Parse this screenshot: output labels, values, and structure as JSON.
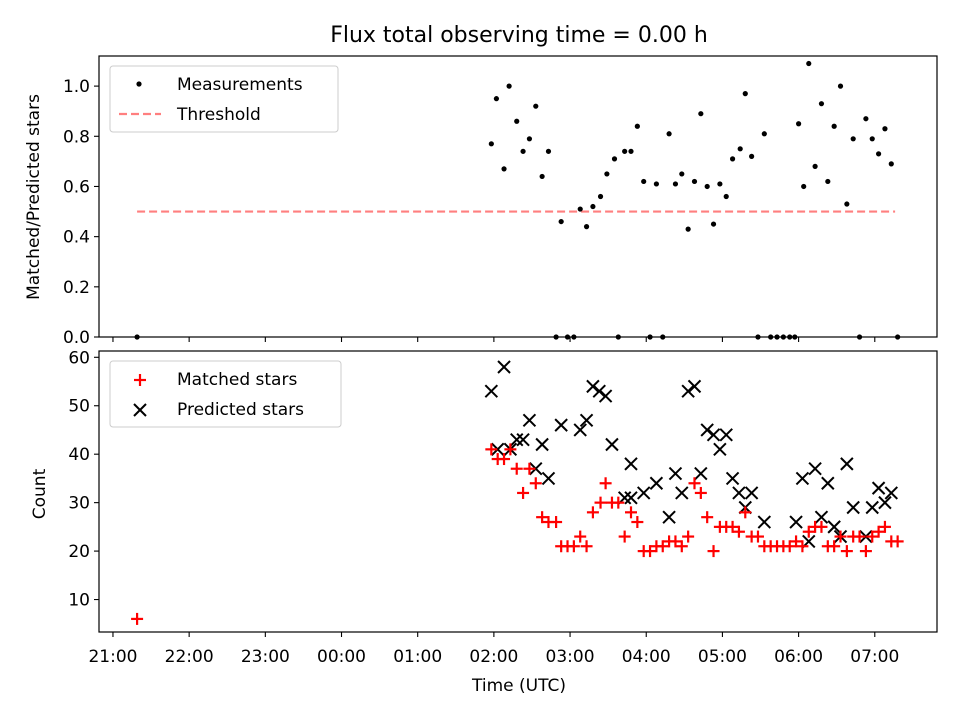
{
  "title": "Flux total observing time = 0.00 h",
  "chart_data": [
    {
      "type": "scatter",
      "title": "Flux total observing time = 0.00 h",
      "xlabel": "",
      "ylabel": "Matched/Predicted stars",
      "xlim": [
        "20:49",
        "07:49"
      ],
      "ylim": [
        0,
        1.12
      ],
      "yticks": [
        "0.0",
        "0.2",
        "0.4",
        "0.6",
        "0.8",
        "1.0"
      ],
      "legend_location": "upper left",
      "legend": [
        "Measurements",
        "Threshold"
      ],
      "threshold": {
        "name": "Threshold",
        "value": 0.5,
        "x_start": "21:19",
        "x_end": "07:16",
        "color": "#ff7f7f"
      },
      "series": [
        {
          "name": "Measurements",
          "color": "#000000",
          "points": [
            [
              "21:19",
              0.0
            ],
            [
              "01:58",
              0.77
            ],
            [
              "02:02",
              0.95
            ],
            [
              "02:08",
              0.67
            ],
            [
              "02:12",
              1.0
            ],
            [
              "02:18",
              0.86
            ],
            [
              "02:23",
              0.74
            ],
            [
              "02:28",
              0.79
            ],
            [
              "02:33",
              0.92
            ],
            [
              "02:38",
              0.64
            ],
            [
              "02:43",
              0.74
            ],
            [
              "02:49",
              0.0
            ],
            [
              "02:53",
              0.46
            ],
            [
              "02:58",
              0.0
            ],
            [
              "03:03",
              0.0
            ],
            [
              "03:08",
              0.51
            ],
            [
              "03:13",
              0.44
            ],
            [
              "03:18",
              0.52
            ],
            [
              "03:24",
              0.56
            ],
            [
              "03:29",
              0.65
            ],
            [
              "03:35",
              0.71
            ],
            [
              "03:38",
              0.0
            ],
            [
              "03:43",
              0.74
            ],
            [
              "03:48",
              0.74
            ],
            [
              "03:53",
              0.84
            ],
            [
              "03:58",
              0.62
            ],
            [
              "04:03",
              0.0
            ],
            [
              "04:08",
              0.61
            ],
            [
              "04:13",
              0.0
            ],
            [
              "04:18",
              0.81
            ],
            [
              "04:23",
              0.61
            ],
            [
              "04:28",
              0.65
            ],
            [
              "04:33",
              0.43
            ],
            [
              "04:38",
              0.62
            ],
            [
              "04:43",
              0.89
            ],
            [
              "04:48",
              0.6
            ],
            [
              "04:53",
              0.45
            ],
            [
              "04:58",
              0.61
            ],
            [
              "05:03",
              0.56
            ],
            [
              "05:08",
              0.71
            ],
            [
              "05:14",
              0.75
            ],
            [
              "05:18",
              0.97
            ],
            [
              "05:23",
              0.72
            ],
            [
              "05:28",
              0.0
            ],
            [
              "05:33",
              0.81
            ],
            [
              "05:38",
              0.0
            ],
            [
              "05:43",
              0.0
            ],
            [
              "05:48",
              0.0
            ],
            [
              "05:53",
              0.0
            ],
            [
              "05:57",
              0.0
            ],
            [
              "06:00",
              0.85
            ],
            [
              "06:04",
              0.6
            ],
            [
              "06:08",
              1.09
            ],
            [
              "06:13",
              0.68
            ],
            [
              "06:18",
              0.93
            ],
            [
              "06:23",
              0.62
            ],
            [
              "06:28",
              0.84
            ],
            [
              "06:33",
              1.0
            ],
            [
              "06:38",
              0.53
            ],
            [
              "06:43",
              0.79
            ],
            [
              "06:48",
              0.0
            ],
            [
              "06:53",
              0.87
            ],
            [
              "06:58",
              0.79
            ],
            [
              "07:03",
              0.73
            ],
            [
              "07:08",
              0.83
            ],
            [
              "07:13",
              0.69
            ],
            [
              "07:18",
              0.0
            ]
          ]
        }
      ]
    },
    {
      "type": "scatter",
      "title": "",
      "xlabel": "Time (UTC)",
      "ylabel": "Count",
      "xlim": [
        "20:49",
        "07:49"
      ],
      "ylim": [
        3.3,
        61.3
      ],
      "yticks": [
        "10",
        "20",
        "30",
        "40",
        "50",
        "60"
      ],
      "xticks": [
        "21:00",
        "22:00",
        "23:00",
        "00:00",
        "01:00",
        "02:00",
        "03:00",
        "04:00",
        "05:00",
        "06:00",
        "07:00"
      ],
      "legend_location": "upper left",
      "legend": [
        "Matched stars",
        "Predicted stars"
      ],
      "series": [
        {
          "name": "Matched stars",
          "marker": "+",
          "color": "#ff0000",
          "points": [
            [
              "21:19",
              6
            ],
            [
              "01:58",
              41
            ],
            [
              "02:03",
              39
            ],
            [
              "02:08",
              39
            ],
            [
              "02:13",
              41
            ],
            [
              "02:18",
              37
            ],
            [
              "02:23",
              32
            ],
            [
              "02:28",
              37
            ],
            [
              "02:33",
              34
            ],
            [
              "02:38",
              27
            ],
            [
              "02:43",
              26
            ],
            [
              "02:49",
              26
            ],
            [
              "02:53",
              21
            ],
            [
              "02:58",
              21
            ],
            [
              "03:03",
              21
            ],
            [
              "03:08",
              23
            ],
            [
              "03:13",
              21
            ],
            [
              "03:18",
              28
            ],
            [
              "03:24",
              30
            ],
            [
              "03:28",
              34
            ],
            [
              "03:33",
              30
            ],
            [
              "03:38",
              30
            ],
            [
              "03:43",
              23
            ],
            [
              "03:48",
              28
            ],
            [
              "03:53",
              26
            ],
            [
              "03:58",
              20
            ],
            [
              "04:03",
              20
            ],
            [
              "04:08",
              21
            ],
            [
              "04:13",
              21
            ],
            [
              "04:18",
              22
            ],
            [
              "04:23",
              22
            ],
            [
              "04:28",
              21
            ],
            [
              "04:33",
              23
            ],
            [
              "04:38",
              34
            ],
            [
              "04:43",
              32
            ],
            [
              "04:48",
              27
            ],
            [
              "04:53",
              20
            ],
            [
              "04:58",
              25
            ],
            [
              "05:03",
              25
            ],
            [
              "05:08",
              25
            ],
            [
              "05:13",
              24
            ],
            [
              "05:18",
              28
            ],
            [
              "05:23",
              23
            ],
            [
              "05:28",
              23
            ],
            [
              "05:33",
              21
            ],
            [
              "05:38",
              21
            ],
            [
              "05:43",
              21
            ],
            [
              "05:48",
              21
            ],
            [
              "05:53",
              21
            ],
            [
              "05:58",
              22
            ],
            [
              "06:03",
              21
            ],
            [
              "06:08",
              24
            ],
            [
              "06:13",
              25
            ],
            [
              "06:18",
              25
            ],
            [
              "06:23",
              21
            ],
            [
              "06:28",
              21
            ],
            [
              "06:33",
              23
            ],
            [
              "06:38",
              20
            ],
            [
              "06:43",
              23
            ],
            [
              "06:48",
              23
            ],
            [
              "06:53",
              20
            ],
            [
              "06:58",
              23
            ],
            [
              "07:03",
              24
            ],
            [
              "07:08",
              25
            ],
            [
              "07:13",
              22
            ],
            [
              "07:18",
              22
            ]
          ]
        },
        {
          "name": "Predicted stars",
          "marker": "x",
          "color": "#000000",
          "points": [
            [
              "01:58",
              53
            ],
            [
              "02:03",
              41
            ],
            [
              "02:08",
              58
            ],
            [
              "02:13",
              41
            ],
            [
              "02:18",
              43
            ],
            [
              "02:23",
              43
            ],
            [
              "02:28",
              47
            ],
            [
              "02:33",
              37
            ],
            [
              "02:38",
              42
            ],
            [
              "02:43",
              35
            ],
            [
              "02:53",
              46
            ],
            [
              "03:08",
              45
            ],
            [
              "03:13",
              47
            ],
            [
              "03:18",
              54
            ],
            [
              "03:23",
              53
            ],
            [
              "03:28",
              52
            ],
            [
              "03:33",
              42
            ],
            [
              "03:43",
              31
            ],
            [
              "03:48",
              38
            ],
            [
              "03:48",
              31
            ],
            [
              "03:58",
              32
            ],
            [
              "04:08",
              34
            ],
            [
              "04:18",
              27
            ],
            [
              "04:23",
              36
            ],
            [
              "04:28",
              32
            ],
            [
              "04:33",
              53
            ],
            [
              "04:38",
              54
            ],
            [
              "04:43",
              36
            ],
            [
              "04:48",
              45
            ],
            [
              "04:53",
              44
            ],
            [
              "04:58",
              41
            ],
            [
              "05:03",
              44
            ],
            [
              "05:08",
              35
            ],
            [
              "05:13",
              32
            ],
            [
              "05:18",
              29
            ],
            [
              "05:23",
              32
            ],
            [
              "05:33",
              26
            ],
            [
              "05:58",
              26
            ],
            [
              "06:03",
              35
            ],
            [
              "06:08",
              22
            ],
            [
              "06:13",
              37
            ],
            [
              "06:18",
              27
            ],
            [
              "06:23",
              34
            ],
            [
              "06:28",
              25
            ],
            [
              "06:33",
              23
            ],
            [
              "06:38",
              38
            ],
            [
              "06:43",
              29
            ],
            [
              "06:53",
              23
            ],
            [
              "06:58",
              29
            ],
            [
              "07:03",
              33
            ],
            [
              "07:08",
              30
            ],
            [
              "07:13",
              32
            ]
          ]
        }
      ]
    }
  ]
}
